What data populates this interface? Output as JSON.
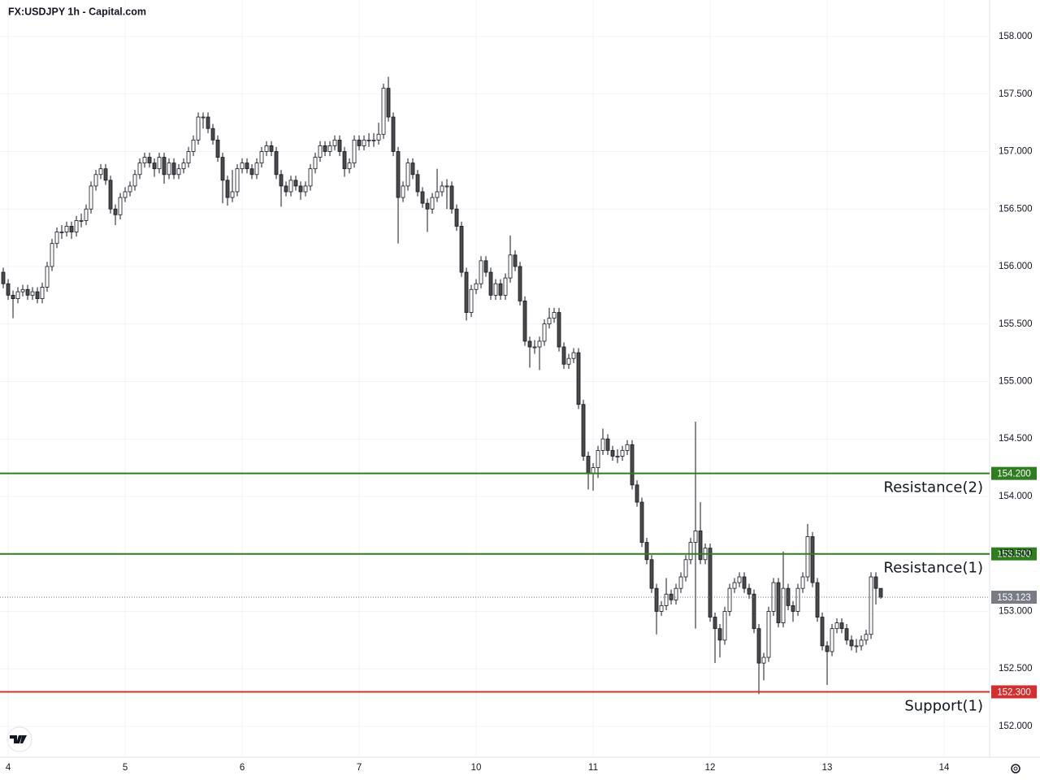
{
  "chart_data": {
    "type": "candlestick",
    "title": "FX:USDJPY 1h - Capital.com",
    "x": [
      -1,
      0,
      1,
      2,
      3,
      4,
      5,
      6,
      7,
      8,
      9,
      10,
      11,
      12,
      13,
      14,
      15,
      16,
      17,
      18,
      19,
      20,
      21,
      22,
      23,
      24,
      25,
      26,
      27,
      28,
      29,
      30,
      31,
      32,
      33,
      34,
      35,
      36,
      37,
      38,
      39,
      40,
      41,
      42,
      43,
      44,
      45,
      46,
      47,
      48,
      49,
      50,
      51,
      52,
      53,
      54,
      55,
      56,
      57,
      58,
      59,
      60,
      61,
      62,
      63,
      64,
      65,
      66,
      67,
      68,
      69,
      70,
      71,
      72,
      73,
      74,
      75,
      76,
      77,
      78,
      79,
      80,
      81,
      82,
      83,
      84,
      85,
      86,
      87,
      88,
      89,
      90,
      91,
      92,
      93,
      94,
      95,
      96,
      97,
      98,
      99,
      100,
      101,
      102,
      103,
      104,
      105,
      106,
      107,
      108,
      109,
      110,
      111,
      112,
      113,
      114,
      115,
      116,
      117,
      118,
      119,
      120,
      121,
      122,
      123,
      124,
      125,
      126,
      127,
      128,
      129,
      130,
      131,
      132,
      133,
      134,
      135,
      136,
      137,
      138,
      139,
      140,
      141,
      142,
      143,
      144,
      145,
      146,
      147,
      148,
      149,
      150,
      151,
      152,
      153,
      154,
      155,
      156,
      157,
      158,
      159,
      160,
      161,
      162,
      163,
      164,
      165,
      166,
      167,
      168,
      169,
      170,
      171,
      172,
      173,
      174,
      175,
      176,
      177,
      178,
      179
    ],
    "open": [
      155.95,
      155.85,
      155.75,
      155.72,
      155.78,
      155.8,
      155.75,
      155.78,
      155.72,
      155.82,
      156.0,
      156.2,
      156.3,
      156.3,
      156.35,
      156.3,
      156.4,
      156.4,
      156.5,
      156.7,
      156.8,
      156.85,
      156.75,
      156.5,
      156.45,
      156.6,
      156.65,
      156.7,
      156.8,
      156.9,
      156.95,
      156.9,
      156.85,
      156.95,
      156.8,
      156.9,
      156.8,
      156.85,
      156.9,
      157.0,
      157.1,
      157.3,
      157.3,
      157.2,
      157.1,
      156.95,
      156.75,
      156.6,
      156.65,
      156.85,
      156.9,
      156.85,
      156.8,
      156.9,
      157.0,
      157.05,
      157.0,
      156.8,
      156.7,
      156.65,
      156.75,
      156.7,
      156.65,
      156.7,
      156.85,
      156.95,
      157.05,
      157.0,
      157.05,
      157.1,
      157.0,
      156.85,
      156.9,
      157.1,
      157.05,
      157.1,
      157.1,
      157.1,
      157.15,
      157.55,
      157.3,
      157.0,
      156.6,
      156.7,
      156.9,
      156.8,
      156.65,
      156.55,
      156.5,
      156.6,
      156.65,
      156.7,
      156.7,
      156.5,
      156.35,
      155.95,
      155.6,
      155.8,
      155.85,
      156.05,
      155.95,
      155.75,
      155.85,
      155.75,
      155.9,
      156.1,
      156.0,
      155.7,
      155.35,
      155.3,
      155.3,
      155.35,
      155.5,
      155.55,
      155.6,
      155.3,
      155.15,
      155.2,
      155.25,
      154.8,
      154.35,
      154.2,
      154.25,
      154.4,
      154.5,
      154.4,
      154.35,
      154.35,
      154.4,
      154.45,
      154.1,
      153.95,
      153.6,
      153.45,
      153.2,
      153.0,
      153.05,
      153.15,
      153.1,
      153.2,
      153.3,
      153.45,
      153.6,
      153.7,
      153.45,
      153.55,
      152.95,
      152.85,
      152.75,
      153.0,
      153.2,
      153.25,
      153.3,
      153.2,
      153.15,
      152.85,
      152.55,
      152.6,
      153.0,
      153.25,
      152.9,
      153.2,
      153.05,
      153.0,
      153.2,
      153.3,
      153.65,
      153.25,
      152.95,
      152.7,
      152.65,
      152.85,
      152.9,
      152.85,
      152.75,
      152.7,
      152.7,
      152.75,
      152.8,
      153.3,
      153.2
    ],
    "high": [
      155.99,
      155.89,
      155.79,
      155.82,
      155.84,
      155.84,
      155.82,
      155.82,
      155.86,
      156.04,
      156.24,
      156.34,
      156.36,
      156.39,
      156.39,
      156.44,
      156.46,
      156.54,
      156.74,
      156.84,
      156.89,
      156.89,
      156.79,
      156.54,
      156.64,
      156.69,
      156.74,
      156.84,
      156.94,
      156.99,
      156.99,
      156.94,
      156.99,
      156.99,
      156.94,
      156.94,
      156.89,
      156.94,
      157.04,
      157.14,
      157.34,
      157.34,
      157.34,
      157.24,
      157.14,
      156.99,
      156.79,
      156.84,
      156.89,
      156.94,
      156.94,
      156.89,
      156.94,
      157.04,
      157.09,
      157.09,
      157.04,
      156.84,
      156.74,
      156.79,
      156.79,
      156.74,
      156.74,
      156.89,
      156.99,
      157.09,
      157.09,
      157.09,
      157.14,
      157.14,
      157.04,
      156.94,
      157.14,
      157.14,
      157.14,
      157.16,
      157.16,
      157.25,
      157.59,
      157.65,
      157.34,
      157.04,
      156.74,
      156.94,
      156.94,
      156.84,
      156.69,
      156.59,
      156.64,
      156.85,
      156.74,
      156.76,
      156.74,
      156.54,
      156.39,
      155.99,
      155.84,
      155.89,
      156.09,
      156.09,
      155.99,
      155.89,
      155.89,
      155.94,
      156.27,
      156.14,
      156.04,
      155.74,
      155.39,
      155.36,
      155.39,
      155.54,
      155.64,
      155.64,
      155.64,
      155.34,
      155.24,
      155.29,
      155.29,
      154.84,
      154.39,
      154.29,
      154.44,
      154.59,
      154.54,
      154.44,
      154.41,
      154.44,
      154.49,
      154.49,
      154.14,
      153.99,
      153.64,
      153.49,
      153.24,
      153.09,
      153.29,
      153.19,
      153.24,
      153.34,
      153.49,
      153.64,
      154.65,
      153.95,
      153.59,
      153.59,
      152.99,
      152.89,
      153.04,
      153.24,
      153.29,
      153.34,
      153.34,
      153.24,
      153.19,
      152.89,
      152.64,
      153.04,
      153.29,
      153.29,
      153.52,
      153.24,
      153.09,
      153.24,
      153.34,
      153.76,
      153.69,
      153.29,
      152.99,
      152.74,
      152.89,
      152.94,
      152.94,
      152.89,
      152.79,
      152.76,
      152.79,
      152.84,
      153.34,
      153.34,
      153.15
    ],
    "low": [
      155.81,
      155.71,
      155.55,
      155.68,
      155.74,
      155.71,
      155.71,
      155.68,
      155.68,
      155.78,
      155.96,
      156.16,
      156.24,
      156.26,
      156.24,
      156.26,
      156.34,
      156.36,
      156.46,
      156.66,
      156.76,
      156.71,
      156.46,
      156.36,
      156.41,
      156.56,
      156.61,
      156.66,
      156.76,
      156.86,
      156.86,
      156.78,
      156.81,
      156.72,
      156.76,
      156.76,
      156.76,
      156.81,
      156.86,
      156.96,
      157.06,
      157.2,
      157.16,
      157.06,
      156.91,
      156.55,
      156.53,
      156.56,
      156.61,
      156.81,
      156.81,
      156.76,
      156.76,
      156.86,
      156.96,
      156.96,
      156.76,
      156.52,
      156.61,
      156.61,
      156.66,
      156.58,
      156.61,
      156.66,
      156.81,
      156.91,
      156.96,
      156.96,
      157.01,
      156.96,
      156.78,
      156.81,
      156.86,
      157.01,
      157.01,
      157.04,
      157.04,
      157.06,
      157.11,
      157.26,
      156.96,
      156.2,
      156.56,
      156.66,
      156.76,
      156.61,
      156.51,
      156.3,
      156.46,
      156.56,
      156.61,
      156.5,
      156.46,
      156.31,
      155.91,
      155.53,
      155.56,
      155.76,
      155.81,
      155.91,
      155.71,
      155.71,
      155.71,
      155.71,
      155.86,
      155.96,
      155.66,
      155.31,
      155.12,
      155.24,
      155.1,
      155.31,
      155.46,
      155.51,
      155.26,
      155.11,
      155.11,
      155.16,
      154.76,
      154.31,
      154.06,
      154.05,
      154.16,
      154.36,
      154.36,
      154.31,
      154.29,
      154.31,
      154.36,
      154.06,
      153.91,
      153.56,
      153.41,
      153.16,
      152.8,
      152.96,
      153.01,
      153.06,
      153.06,
      153.16,
      153.26,
      153.41,
      152.85,
      153.41,
      153.41,
      152.91,
      152.55,
      152.6,
      152.71,
      152.96,
      153.16,
      153.21,
      153.16,
      153.11,
      152.81,
      152.28,
      152.4,
      152.56,
      152.96,
      152.86,
      152.86,
      153.01,
      152.91,
      152.96,
      153.16,
      153.26,
      153.21,
      152.91,
      152.66,
      152.36,
      152.61,
      152.81,
      152.81,
      152.71,
      152.66,
      152.64,
      152.66,
      152.71,
      152.76,
      153.06,
      153.11
    ],
    "close": [
      155.85,
      155.75,
      155.72,
      155.78,
      155.8,
      155.75,
      155.78,
      155.72,
      155.82,
      156.0,
      156.2,
      156.3,
      156.3,
      156.35,
      156.3,
      156.4,
      156.4,
      156.5,
      156.7,
      156.8,
      156.85,
      156.75,
      156.5,
      156.45,
      156.6,
      156.65,
      156.7,
      156.8,
      156.9,
      156.95,
      156.9,
      156.85,
      156.95,
      156.8,
      156.9,
      156.8,
      156.85,
      156.9,
      157.0,
      157.1,
      157.3,
      157.3,
      157.2,
      157.1,
      156.95,
      156.75,
      156.6,
      156.65,
      156.85,
      156.9,
      156.85,
      156.8,
      156.9,
      157.0,
      157.05,
      157.0,
      156.8,
      156.7,
      156.65,
      156.75,
      156.7,
      156.65,
      156.7,
      156.85,
      156.95,
      157.05,
      157.0,
      157.05,
      157.1,
      157.0,
      156.85,
      156.9,
      157.1,
      157.05,
      157.1,
      157.1,
      157.1,
      157.15,
      157.55,
      157.3,
      157.0,
      156.6,
      156.7,
      156.9,
      156.8,
      156.65,
      156.55,
      156.5,
      156.6,
      156.65,
      156.7,
      156.7,
      156.5,
      156.35,
      155.95,
      155.6,
      155.8,
      155.85,
      156.05,
      155.95,
      155.75,
      155.85,
      155.75,
      155.9,
      156.1,
      156.0,
      155.7,
      155.35,
      155.3,
      155.3,
      155.35,
      155.5,
      155.55,
      155.6,
      155.3,
      155.15,
      155.2,
      155.25,
      154.8,
      154.35,
      154.2,
      154.25,
      154.4,
      154.5,
      154.4,
      154.35,
      154.35,
      154.4,
      154.45,
      154.1,
      153.95,
      153.6,
      153.45,
      153.2,
      153.0,
      153.05,
      153.15,
      153.1,
      153.2,
      153.3,
      153.45,
      153.6,
      153.7,
      153.45,
      153.55,
      152.95,
      152.85,
      152.75,
      153.0,
      153.2,
      153.25,
      153.3,
      153.2,
      153.15,
      152.85,
      152.55,
      152.6,
      153.0,
      153.25,
      152.9,
      153.2,
      153.05,
      153.0,
      153.2,
      153.3,
      153.65,
      153.25,
      152.95,
      152.7,
      152.65,
      152.85,
      152.9,
      152.85,
      152.75,
      152.7,
      152.7,
      152.75,
      152.8,
      153.3,
      153.2,
      153.123
    ],
    "xlim": [
      -1.67,
      201.33
    ],
    "xticks": [
      {
        "value": 0,
        "label": "4"
      },
      {
        "value": 24,
        "label": "5"
      },
      {
        "value": 48,
        "label": "6"
      },
      {
        "value": 72,
        "label": "7"
      },
      {
        "value": 96,
        "label": "10"
      },
      {
        "value": 120,
        "label": "11"
      },
      {
        "value": 144,
        "label": "12"
      },
      {
        "value": 168,
        "label": "13"
      },
      {
        "value": 192,
        "label": "14"
      }
    ],
    "ylim": [
      151.731,
      158.318
    ],
    "yticks": [
      {
        "value": 152,
        "label": "152.000"
      },
      {
        "value": 152.5,
        "label": "152.500"
      },
      {
        "value": 153,
        "label": "153.000"
      },
      {
        "value": 153.5,
        "label": "153.500"
      },
      {
        "value": 154,
        "label": "154.000"
      },
      {
        "value": 154.5,
        "label": "154.500"
      },
      {
        "value": 155,
        "label": "155.000"
      },
      {
        "value": 155.5,
        "label": "155.500"
      },
      {
        "value": 156,
        "label": "156.000"
      },
      {
        "value": 156.5,
        "label": "156.500"
      },
      {
        "value": 157,
        "label": "157.000"
      },
      {
        "value": 157.5,
        "label": "157.500"
      },
      {
        "value": 158,
        "label": "158.000"
      }
    ],
    "grid": true,
    "up_color": "#ffffff",
    "down_color": "#4a4a4a",
    "levels": [
      {
        "name": "Resistance(2)",
        "value": 154.2,
        "label": "154.200",
        "color": "#2e7d1e"
      },
      {
        "name": "Resistance(1)",
        "value": 153.5,
        "label": "153.500",
        "color": "#2e7d1e"
      },
      {
        "name": "Support(1)",
        "value": 152.3,
        "label": "152.300",
        "color": "#d32f2f"
      }
    ],
    "last_price": {
      "value": 153.123,
      "label": "153.123",
      "color": "#787b86"
    }
  }
}
